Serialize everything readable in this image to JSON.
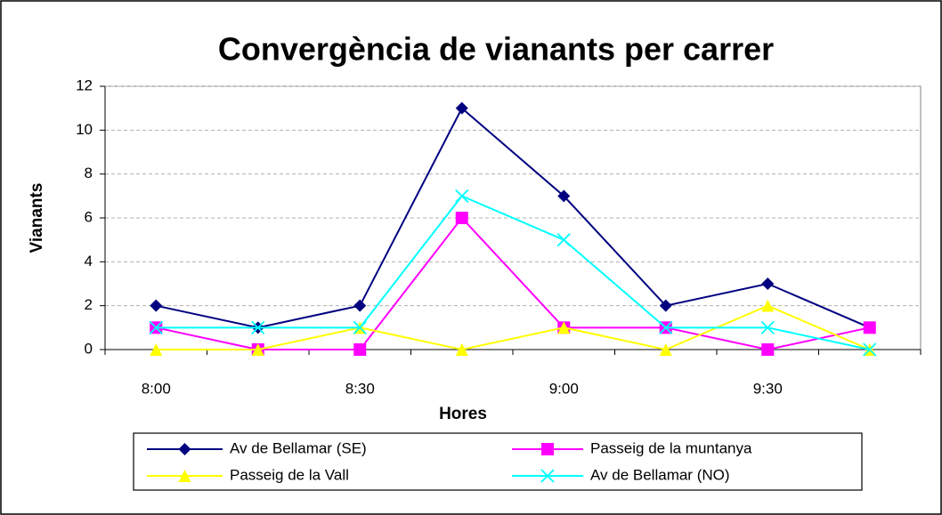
{
  "chart_data": {
    "type": "line",
    "title": "Convergència de vianants per carrer",
    "x_label": "Hores",
    "y_label": "Vianants",
    "categories": [
      "8:00",
      null,
      "8:30",
      null,
      "9:00",
      null,
      "9:30",
      null
    ],
    "series": [
      {
        "name": "Av de Bellamar (SE)",
        "color": "#000080",
        "marker": "diamond",
        "values": [
          2,
          1,
          2,
          11,
          7,
          2,
          3,
          1
        ]
      },
      {
        "name": "Passeig de la muntanya",
        "color": "#ff00ff",
        "marker": "square",
        "values": [
          1,
          0,
          0,
          6,
          1,
          1,
          0,
          1
        ]
      },
      {
        "name": "Passeig de la Vall",
        "color": "#ffff00",
        "marker": "triangle",
        "values": [
          0,
          0,
          1,
          0,
          1,
          0,
          2,
          0
        ]
      },
      {
        "name": "Av de Bellamar (NO)",
        "color": "#00ffff",
        "marker": "x",
        "values": [
          1,
          1,
          1,
          7,
          5,
          1,
          1,
          0
        ]
      }
    ],
    "ylim": [
      0,
      12
    ],
    "yticks": [
      0,
      2,
      4,
      6,
      8,
      10,
      12
    ],
    "grid": true
  }
}
